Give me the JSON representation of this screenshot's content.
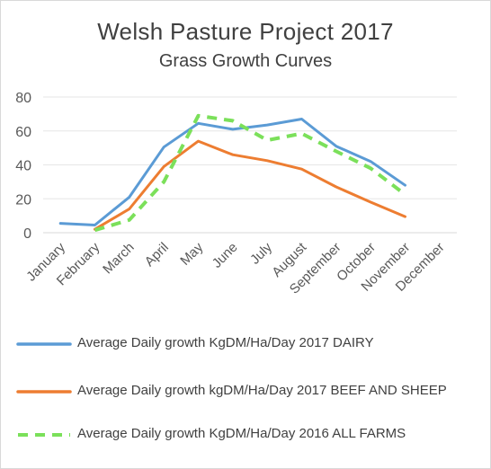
{
  "chart_data": {
    "type": "line",
    "title": "Welsh Pasture Project 2017",
    "subtitle": "Grass Growth Curves",
    "xlabel": "",
    "ylabel": "",
    "categories": [
      "January",
      "February",
      "March",
      "April",
      "May",
      "June",
      "July",
      "August",
      "September",
      "October",
      "November",
      "December"
    ],
    "ylim": [
      0,
      80
    ],
    "yticks": [
      0,
      20,
      40,
      60,
      80
    ],
    "grid": "horizontal",
    "legend_position": "bottom",
    "series": [
      {
        "name": "Average Daily growth KgDM/Ha/Day 2017 DAIRY",
        "color": "#5b9bd5",
        "style": "solid",
        "values": [
          5.5,
          4.5,
          21,
          50.5,
          64.5,
          61,
          63.5,
          67,
          51,
          42,
          28,
          null
        ]
      },
      {
        "name": "Average Daily growth kgDM/Ha/Day 2017 BEEF AND SHEEP",
        "color": "#ed7d31",
        "style": "solid",
        "values": [
          null,
          2,
          14,
          39,
          54,
          46,
          42.5,
          37.5,
          27,
          18,
          9.5,
          null
        ]
      },
      {
        "name": "Average Daily growth KgDM/Ha/Day 2016 ALL FARMS",
        "color": "#7be05a",
        "style": "dashed",
        "values": [
          null,
          1.5,
          7.5,
          30,
          69,
          66,
          54.5,
          58.5,
          48,
          38,
          22.5,
          null
        ]
      }
    ]
  }
}
